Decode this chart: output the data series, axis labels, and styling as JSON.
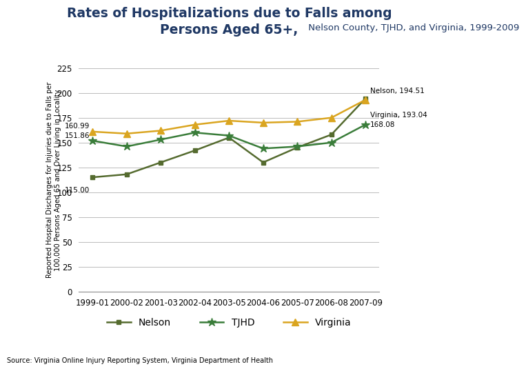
{
  "source": "Source: Virginia Online Injury Reporting System, Virginia Department of Health",
  "ylabel": "Reported Hospital Discharges for Injuries due to Falls per\n100,000 Persons Aged 65 and Over Living in Locality",
  "categories": [
    "1999-01",
    "2000-02",
    "2001-03",
    "2002-04",
    "2003-05",
    "2004-06",
    "2005-07",
    "2006-08",
    "2007-09"
  ],
  "nelson": [
    115.0,
    118.0,
    130.0,
    142.0,
    155.0,
    130.0,
    145.0,
    158.0,
    194.51
  ],
  "tjhd": [
    151.86,
    146.0,
    153.0,
    160.0,
    157.0,
    144.0,
    146.0,
    150.0,
    168.08
  ],
  "virginia": [
    160.99,
    159.0,
    162.0,
    168.0,
    172.0,
    170.0,
    171.0,
    175.0,
    193.04
  ],
  "nelson_color": "#556B2F",
  "tjhd_color": "#3A7D3A",
  "virginia_color": "#DAA520",
  "ylim": [
    0,
    225
  ],
  "yticks": [
    0,
    25,
    50,
    75,
    100,
    125,
    150,
    175,
    200,
    225
  ],
  "bg_color": "#FFFFFF",
  "title_color": "#1F3864",
  "title_line1": "Rates of Hospitalizations due to Falls among",
  "title_line2_bold": "Persons Aged 65+,",
  "title_line2_normal": " Nelson County, TJHD, and Virginia, 1999-2009",
  "ann_nelson_start": "115.00",
  "ann_tjhd_start": "151.86",
  "ann_virginia_start": "160.99",
  "ann_nelson_end": "Nelson, 194.51",
  "ann_virginia_end": "Virginia, 193.04",
  "ann_tjhd_end": "168.08"
}
